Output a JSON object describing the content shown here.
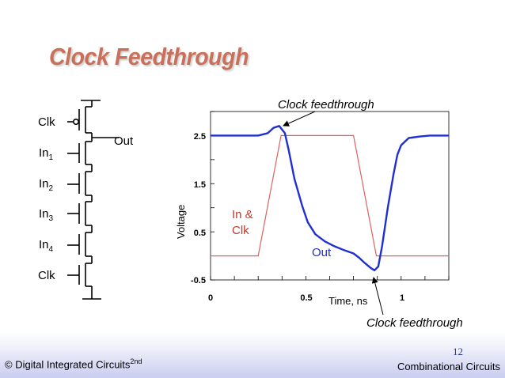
{
  "slide": {
    "title": "Clock Feedthrough",
    "page_number": "12",
    "footer_left_main": "© Digital Integrated Circuits",
    "footer_left_sup": "2nd",
    "footer_right": "Combinational Circuits"
  },
  "circuit": {
    "clk_top": "Clk",
    "in1": "In",
    "in1_sub": "1",
    "in2": "In",
    "in2_sub": "2",
    "in3": "In",
    "in3_sub": "3",
    "in4": "In",
    "in4_sub": "4",
    "clk_bottom": "Clk",
    "out": "Out"
  },
  "chart_data": {
    "type": "line",
    "title": "",
    "xlabel": "Time, ns",
    "ylabel": "Voltage",
    "xlim": [
      0,
      1.25
    ],
    "ylim": [
      -0.5,
      3.0
    ],
    "x_ticks": [
      "0",
      "0.5",
      "1"
    ],
    "y_ticks": [
      "2.5",
      "1.5",
      "0.5",
      "-0.5"
    ],
    "series": [
      {
        "name": "Out",
        "color": "#1f2fd0",
        "x": [
          0,
          0.15,
          0.25,
          0.3,
          0.33,
          0.36,
          0.39,
          0.41,
          0.44,
          0.48,
          0.51,
          0.55,
          0.6,
          0.65,
          0.7,
          0.75,
          0.78,
          0.81,
          0.84,
          0.86,
          0.88,
          0.9,
          0.93,
          0.96,
          0.98,
          1.0,
          1.04,
          1.1,
          1.15,
          1.25
        ],
        "y": [
          2.5,
          2.5,
          2.5,
          2.55,
          2.66,
          2.7,
          2.55,
          2.2,
          1.6,
          1.05,
          0.7,
          0.45,
          0.3,
          0.2,
          0.12,
          0.05,
          -0.04,
          -0.15,
          -0.25,
          -0.3,
          -0.22,
          0.2,
          1.0,
          1.7,
          2.1,
          2.3,
          2.45,
          2.48,
          2.5,
          2.5
        ]
      },
      {
        "name": "In & Clk",
        "color": "#e06060",
        "x": [
          0,
          0.25,
          0.37,
          0.75,
          0.87,
          1.25
        ],
        "y": [
          0,
          0,
          2.5,
          2.5,
          0,
          0
        ]
      }
    ],
    "series_labels": {
      "in_clk_line1": "In &",
      "in_clk_line2": "Clk",
      "out": "Out"
    },
    "annotations": [
      "Clock feedthrough",
      "Clock feedthrough"
    ],
    "grid": false
  }
}
